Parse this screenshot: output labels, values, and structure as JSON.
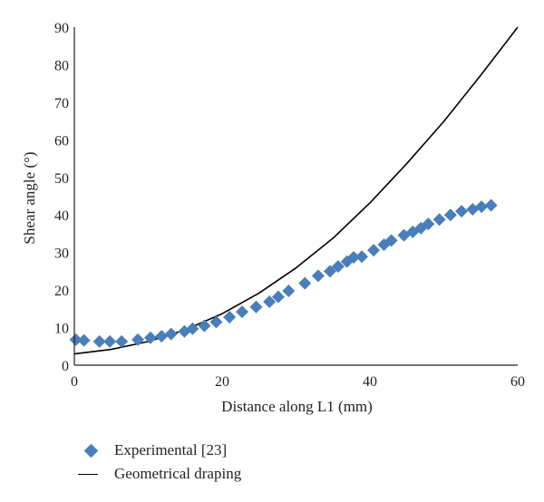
{
  "chart_data": {
    "type": "scatter",
    "xlabel": "Distance along L1 (mm)",
    "ylabel": "Shear angle (°)",
    "xlim": [
      0,
      60
    ],
    "ylim": [
      0,
      90
    ],
    "xticks": [
      0,
      20,
      40,
      60
    ],
    "yticks": [
      0,
      10,
      20,
      30,
      40,
      50,
      60,
      70,
      80,
      90
    ],
    "grid": false,
    "legend_position": "bottom-left",
    "series": [
      {
        "name": "Experimental [23]",
        "kind": "scatter",
        "marker": "diamond",
        "color": "#4a7ebb",
        "x": [
          0.2,
          1.3,
          3.4,
          4.8,
          6.4,
          8.6,
          10.3,
          11.8,
          13.1,
          14.9,
          16.0,
          17.6,
          19.2,
          21.0,
          22.7,
          24.6,
          26.4,
          27.6,
          29.0,
          31.2,
          33.0,
          34.6,
          35.7,
          36.9,
          37.8,
          38.9,
          40.5,
          41.9,
          42.9,
          44.6,
          45.8,
          46.9,
          47.9,
          49.4,
          50.9,
          52.4,
          53.9,
          55.1,
          56.4
        ],
        "y": [
          6.8,
          6.6,
          6.3,
          6.3,
          6.3,
          6.8,
          7.3,
          7.7,
          8.3,
          9.0,
          9.7,
          10.5,
          11.5,
          12.8,
          14.2,
          15.5,
          16.9,
          18.2,
          19.8,
          21.8,
          23.8,
          25.0,
          26.3,
          27.6,
          28.7,
          28.9,
          30.6,
          32.1,
          33.2,
          34.6,
          35.5,
          36.5,
          37.6,
          38.8,
          40.0,
          41.0,
          41.5,
          42.2,
          42.6
        ]
      },
      {
        "name": "Geometrical draping",
        "kind": "line",
        "color": "#000000",
        "x": [
          0,
          5,
          10,
          15,
          20,
          25,
          30,
          35,
          40,
          45,
          50,
          55,
          60
        ],
        "y": [
          3,
          4.2,
          6.3,
          9.4,
          13.7,
          19.2,
          25.9,
          33.8,
          43.2,
          53.7,
          64.9,
          77.2,
          90.0
        ]
      }
    ]
  }
}
